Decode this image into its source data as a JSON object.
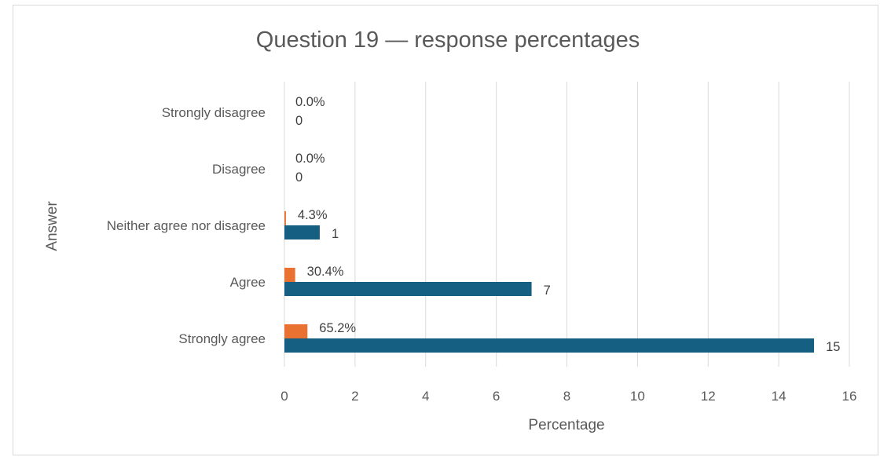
{
  "chart_data": {
    "type": "bar",
    "orientation": "horizontal",
    "title": "Question 19 — response percentages",
    "xlabel": "Percentage",
    "ylabel": "Answer",
    "categories": [
      "Strongly disagree",
      "Disagree",
      "Neither agree nor disagree",
      "Agree",
      "Strongly agree"
    ],
    "series": [
      {
        "values": [
          0,
          0,
          0.043,
          0.304,
          0.652
        ],
        "labels": [
          "0.0%",
          "0.0%",
          "4.3%",
          "30.4%",
          "65.2%"
        ],
        "color": "#e97132"
      },
      {
        "values": [
          0,
          0,
          1,
          7,
          15
        ],
        "labels": [
          "0",
          "0",
          "1",
          "7",
          "15"
        ],
        "color": "#156082"
      }
    ],
    "xlim": [
      0,
      16
    ],
    "xticks": [
      0,
      2,
      4,
      6,
      8,
      10,
      12,
      14,
      16
    ],
    "grid": true,
    "gridColor": "#d9d9d9",
    "legend": "none"
  }
}
